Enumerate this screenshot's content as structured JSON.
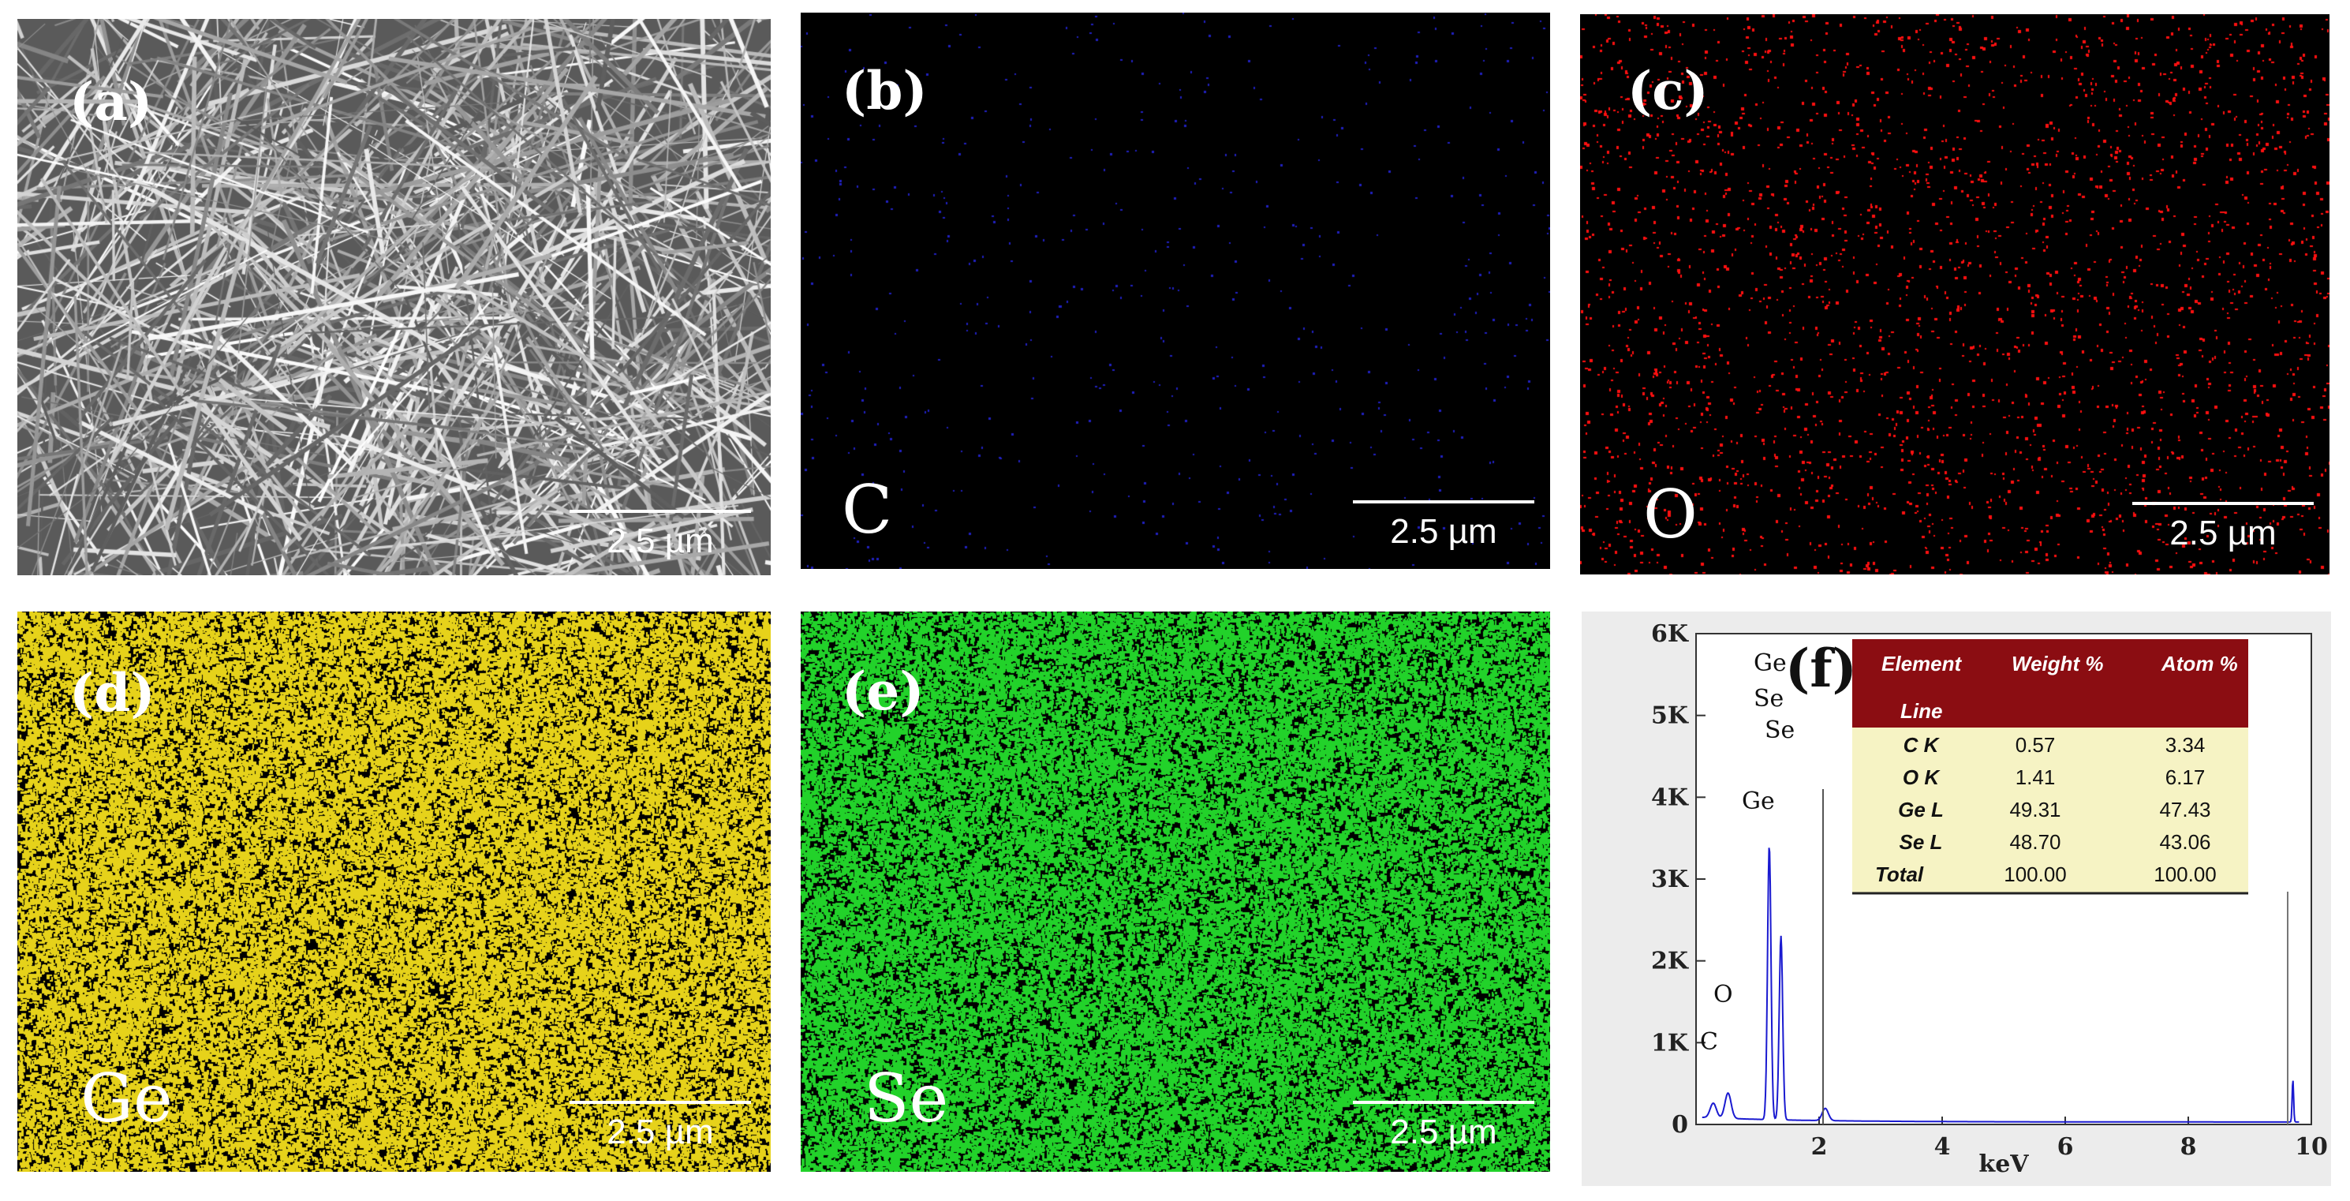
{
  "panels": [
    {
      "id": "a",
      "label": "(a)",
      "kind": "sem",
      "element": "",
      "scale": "2.5 µm"
    },
    {
      "id": "b",
      "label": "(b)",
      "kind": "map",
      "element": "C",
      "color": "#2020c0",
      "density": "low",
      "scale": "2.5 µm"
    },
    {
      "id": "c",
      "label": "(c)",
      "kind": "map",
      "element": "O",
      "color": "#ff1010",
      "density": "medium",
      "scale": "2.5 µm"
    },
    {
      "id": "d",
      "label": "(d)",
      "kind": "map",
      "element": "Ge",
      "color": "#e6d21a",
      "density": "high",
      "scale": "2.5 µm"
    },
    {
      "id": "e",
      "label": "(e)",
      "kind": "map",
      "element": "Se",
      "color": "#22d22a",
      "density": "high",
      "scale": "2.5 µm"
    }
  ],
  "spectrum": {
    "label": "(f)",
    "xlabel": "keV",
    "x_ticks": [
      "2",
      "4",
      "6",
      "8",
      "10"
    ],
    "y_ticks": [
      "0",
      "1K",
      "2K",
      "3K",
      "4K",
      "5K",
      "6K"
    ],
    "peak_labels": [
      "Ge",
      "Se",
      "Se",
      "Ge",
      "O",
      "C"
    ],
    "colors": {
      "spectrum": "#1a1ad0",
      "table_header": "#8b0d12",
      "table_body": "#f6f3c4"
    },
    "table": {
      "headers": [
        "Element",
        "Weight %",
        "Atom %"
      ],
      "header_sub": "Line",
      "rows": [
        [
          "C K",
          "0.57",
          "3.34"
        ],
        [
          "O K",
          "1.41",
          "6.17"
        ],
        [
          "Ge L",
          "49.31",
          "47.43"
        ],
        [
          "Se L",
          "48.70",
          "43.06"
        ],
        [
          "Total",
          "100.00",
          "100.00"
        ]
      ]
    }
  },
  "chart_data": {
    "type": "line",
    "title": "",
    "xlabel": "keV",
    "ylabel": "",
    "xlim": [
      0,
      10
    ],
    "ylim": [
      0,
      6000
    ],
    "series": [
      {
        "x": [
          0.28,
          0.52,
          1.19,
          1.38,
          2.1,
          9.7
        ],
        "y": [
          180,
          310,
          3350,
          2250,
          150,
          520
        ]
      }
    ]
  }
}
